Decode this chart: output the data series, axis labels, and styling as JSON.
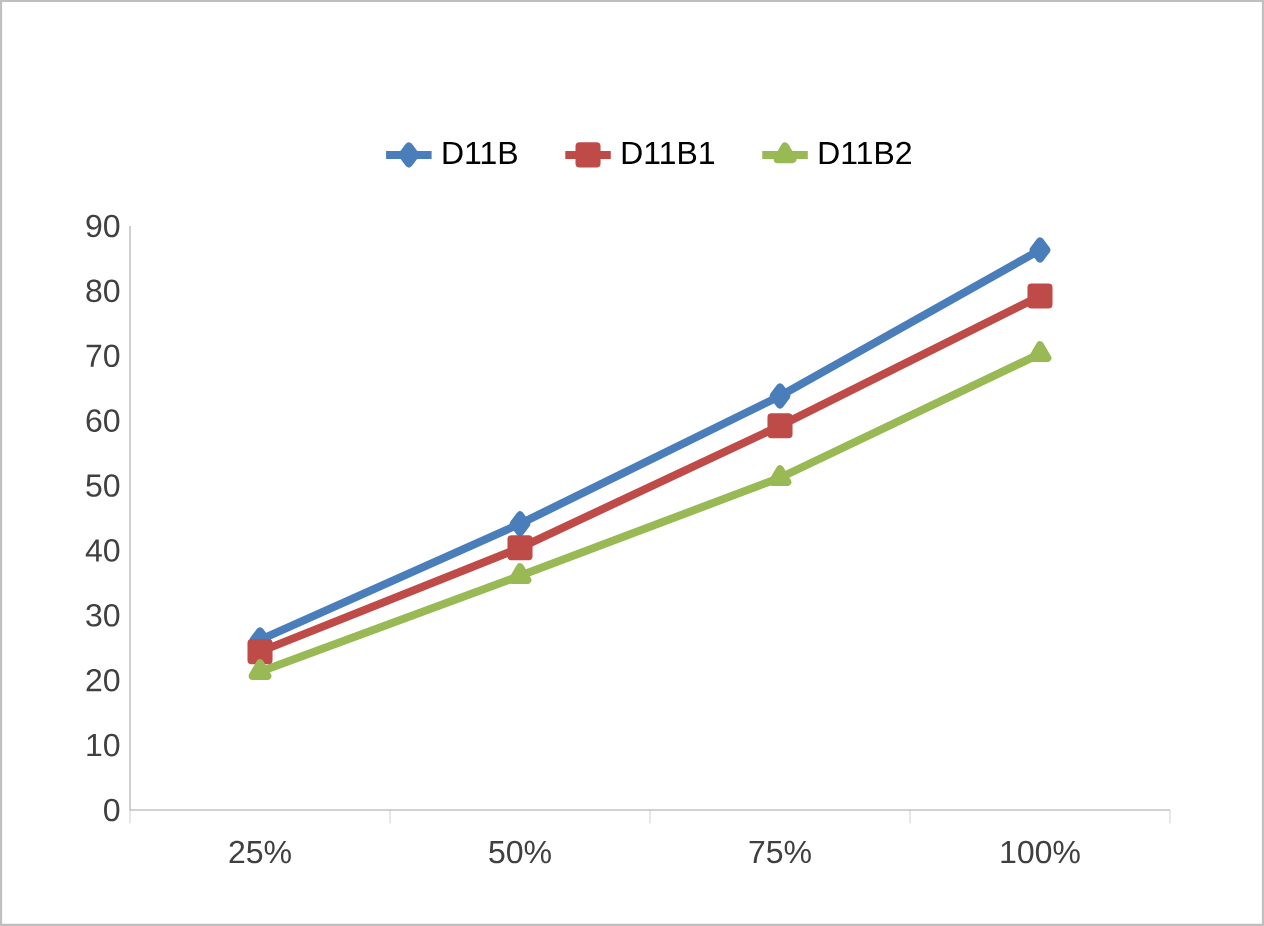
{
  "chart_data": {
    "type": "line",
    "categories": [
      "25%",
      "50%",
      "75%",
      "100%"
    ],
    "series": [
      {
        "name": "D11B",
        "color": "#4a7ebb",
        "marker": "diamond",
        "values": [
          26.2,
          44.1,
          63.8,
          86.3
        ]
      },
      {
        "name": "D11B1",
        "color": "#be4b48",
        "marker": "square",
        "values": [
          24.4,
          40.4,
          59.2,
          79.2
        ]
      },
      {
        "name": "D11B2",
        "color": "#98b954",
        "marker": "triangle",
        "values": [
          21.3,
          36.1,
          51.2,
          70.3
        ]
      }
    ],
    "ylim": [
      0,
      90
    ],
    "yticks": [
      0,
      10,
      20,
      30,
      40,
      50,
      60,
      70,
      80,
      90
    ],
    "grid": false,
    "legend": "top",
    "line_style": "solid"
  }
}
